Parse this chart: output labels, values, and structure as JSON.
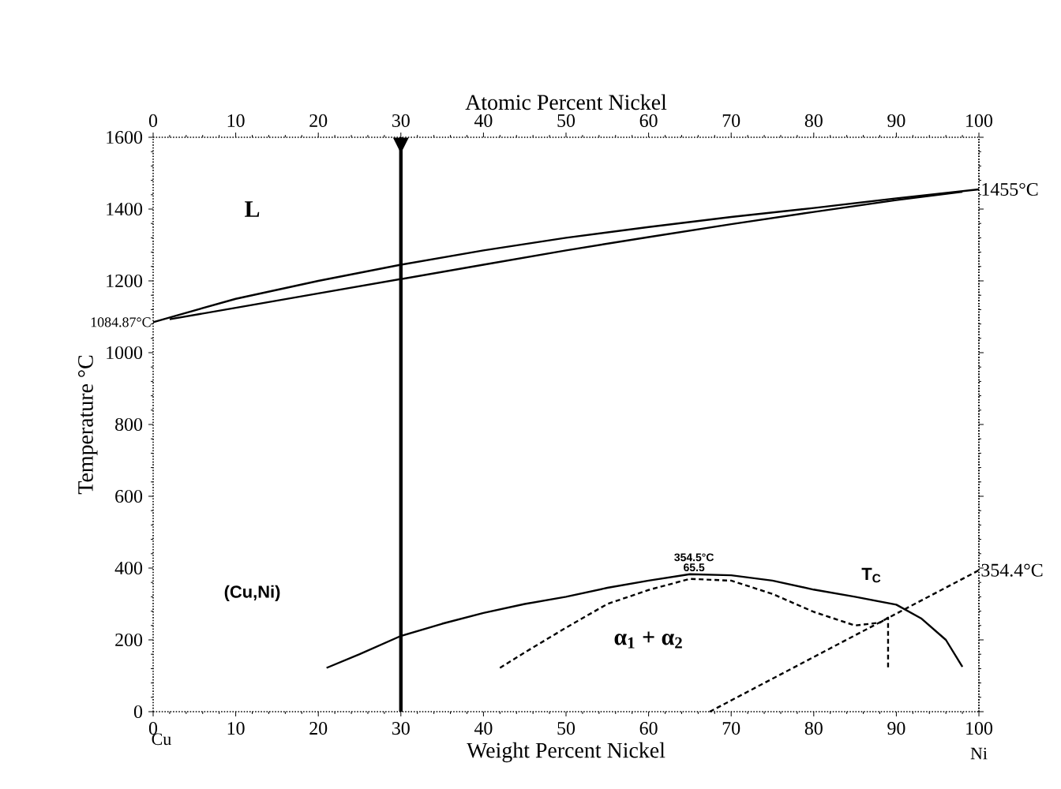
{
  "chart_data": {
    "type": "line",
    "xlabel": "Weight Percent Nickel",
    "x2label": "Atomic Percent Nickel",
    "ylabel": "Temperature °C",
    "xlim": [
      0,
      100
    ],
    "xticks": [
      0,
      10,
      20,
      30,
      40,
      50,
      60,
      70,
      80,
      90,
      100
    ],
    "x2lim": [
      0,
      100
    ],
    "x2ticks": [
      0,
      10,
      20,
      30,
      40,
      50,
      60,
      70,
      80,
      90,
      100
    ],
    "ylim": [
      0,
      1600
    ],
    "yticks": [
      0,
      200,
      400,
      600,
      800,
      1000,
      1200,
      1400,
      1600
    ],
    "grid": false,
    "marker": "none",
    "series": [
      {
        "color": "#000000",
        "line_style": "solid",
        "x": [
          0,
          10,
          20,
          30,
          40,
          50,
          60,
          70,
          80,
          90,
          100
        ],
        "values": [
          1085,
          1150,
          1200,
          1245,
          1285,
          1320,
          1350,
          1378,
          1403,
          1430,
          1455
        ]
      },
      {
        "color": "#000000",
        "line_style": "solid",
        "x": [
          2,
          10,
          20,
          30,
          40,
          50,
          60,
          70,
          80,
          90,
          98
        ],
        "values": [
          1093,
          1125,
          1165,
          1205,
          1245,
          1285,
          1322,
          1358,
          1392,
          1425,
          1448
        ]
      },
      {
        "color": "#000000",
        "line_style": "solid",
        "x": [
          21,
          25,
          30,
          35,
          40,
          45,
          50,
          55,
          60,
          65,
          70,
          75,
          80,
          85,
          90,
          93,
          96,
          98
        ],
        "values": [
          122,
          160,
          211,
          245,
          275,
          300,
          320,
          345,
          365,
          383,
          380,
          365,
          340,
          320,
          298,
          260,
          200,
          125
        ]
      },
      {
        "color": "#000000",
        "line_style": "dashed",
        "x": [
          42,
          45,
          50,
          55,
          60,
          65,
          70,
          75,
          80,
          85,
          88,
          89,
          89
        ],
        "values": [
          122,
          165,
          234,
          300,
          339,
          370,
          365,
          328,
          278,
          240,
          248,
          262,
          122
        ]
      },
      {
        "color": "#000000",
        "line_style": "dashed",
        "x": [
          67.4,
          100
        ],
        "values": [
          0,
          394
        ]
      }
    ],
    "ref_lines": [
      {
        "axis": "x",
        "value": 30,
        "color": "#000000"
      }
    ],
    "annotations": [
      "L",
      "(Cu,Ni)",
      "α$_{1}$ + α$_{2}$",
      "354.5°C",
      "65.5",
      "T$_{C}$",
      "354.4°C",
      "1084.87°C",
      "1455°C",
      "Cu",
      "Ni"
    ]
  }
}
